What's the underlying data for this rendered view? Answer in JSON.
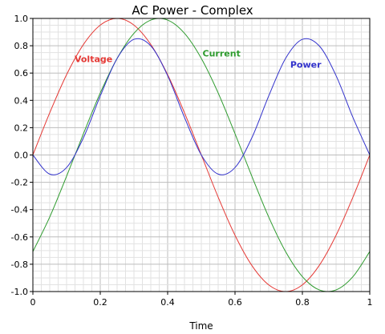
{
  "chart_data": {
    "type": "line",
    "title": "AC Power - Complex",
    "xlabel": "Time",
    "ylabel": "",
    "xlim": [
      0,
      1
    ],
    "ylim": [
      -1,
      1
    ],
    "grid": true,
    "x_ticks": [
      0,
      0.2,
      0.4,
      0.6,
      0.8,
      1
    ],
    "x_tick_labels": [
      "0",
      "0.2",
      "0.4",
      "0.6",
      "0.8",
      "1"
    ],
    "y_ticks": [
      -1,
      -0.8,
      -0.6,
      -0.4,
      -0.2,
      0,
      0.2,
      0.4,
      0.6,
      0.8,
      1
    ],
    "y_tick_labels": [
      "-1.0",
      "-0.8",
      "-0.6",
      "-0.4",
      "-0.2",
      "0.0",
      "0.2",
      "0.4",
      "0.6",
      "0.8",
      "1.0"
    ],
    "x": [
      0,
      0.05,
      0.1,
      0.15,
      0.2,
      0.25,
      0.3,
      0.35,
      0.4,
      0.45,
      0.5,
      0.55,
      0.6,
      0.65,
      0.7,
      0.75,
      0.8,
      0.85,
      0.9,
      0.95,
      1
    ],
    "series": [
      {
        "name": "Voltage",
        "color": "#e53935",
        "values": [
          0,
          0.309,
          0.588,
          0.809,
          0.951,
          1,
          0.951,
          0.809,
          0.588,
          0.309,
          0,
          -0.309,
          -0.588,
          -0.809,
          -0.951,
          -1,
          -0.951,
          -0.809,
          -0.588,
          -0.309,
          0
        ]
      },
      {
        "name": "Current",
        "color": "#2e9b2e",
        "values": [
          -0.707,
          -0.454,
          -0.156,
          0.156,
          0.454,
          0.707,
          0.891,
          0.988,
          0.988,
          0.891,
          0.707,
          0.454,
          0.156,
          -0.156,
          -0.454,
          -0.707,
          -0.891,
          -0.988,
          -0.988,
          -0.891,
          -0.707
        ]
      },
      {
        "name": "Power",
        "color": "#3333cc",
        "values": [
          0,
          -0.14,
          -0.092,
          0.126,
          0.432,
          0.707,
          0.847,
          0.799,
          0.581,
          0.275,
          0,
          -0.14,
          -0.092,
          0.126,
          0.432,
          0.707,
          0.847,
          0.799,
          0.581,
          0.275,
          0
        ]
      }
    ],
    "annotations": [
      {
        "text": "Voltage",
        "x": 0.18,
        "y": 0.68,
        "color": "#e53935"
      },
      {
        "text": "Current",
        "x": 0.56,
        "y": 0.72,
        "color": "#2e9b2e"
      },
      {
        "text": "Power",
        "x": 0.81,
        "y": 0.64,
        "color": "#3333cc"
      }
    ]
  }
}
